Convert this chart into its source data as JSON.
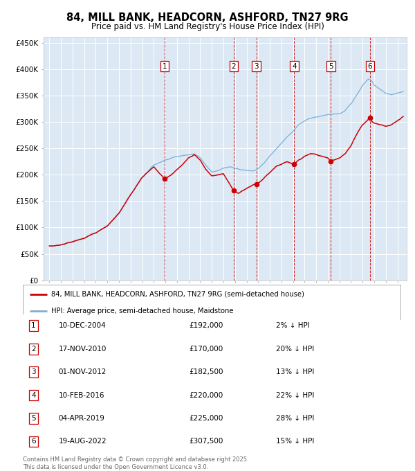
{
  "title": "84, MILL BANK, HEADCORN, ASHFORD, TN27 9RG",
  "subtitle": "Price paid vs. HM Land Registry's House Price Index (HPI)",
  "background_color": "#dce9f5",
  "hpi_line_color": "#7bafd4",
  "price_line_color": "#cc0000",
  "grid_color": "#ffffff",
  "dashed_line_color": "#cc0000",
  "ylim": [
    0,
    460000
  ],
  "yticks": [
    0,
    50000,
    100000,
    150000,
    200000,
    250000,
    300000,
    350000,
    400000,
    450000
  ],
  "ytick_labels": [
    "£0",
    "£50K",
    "£100K",
    "£150K",
    "£200K",
    "£250K",
    "£300K",
    "£350K",
    "£400K",
    "£450K"
  ],
  "sales": [
    {
      "num": 1,
      "date": "10-DEC-2004",
      "price": 192000,
      "pct": "2%",
      "x_year": 2004.94
    },
    {
      "num": 2,
      "date": "17-NOV-2010",
      "price": 170000,
      "pct": "20%",
      "x_year": 2010.88
    },
    {
      "num": 3,
      "date": "01-NOV-2012",
      "price": 182500,
      "pct": "13%",
      "x_year": 2012.84
    },
    {
      "num": 4,
      "date": "10-FEB-2016",
      "price": 220000,
      "pct": "22%",
      "x_year": 2016.11
    },
    {
      "num": 5,
      "date": "04-APR-2019",
      "price": 225000,
      "pct": "28%",
      "x_year": 2019.26
    },
    {
      "num": 6,
      "date": "19-AUG-2022",
      "price": 307500,
      "pct": "15%",
      "x_year": 2022.63
    }
  ],
  "legend_label_red": "84, MILL BANK, HEADCORN, ASHFORD, TN27 9RG (semi-detached house)",
  "legend_label_blue": "HPI: Average price, semi-detached house, Maidstone",
  "footer": "Contains HM Land Registry data © Crown copyright and database right 2025.\nThis data is licensed under the Open Government Licence v3.0.",
  "xlim_start": 1994.5,
  "xlim_end": 2025.8
}
